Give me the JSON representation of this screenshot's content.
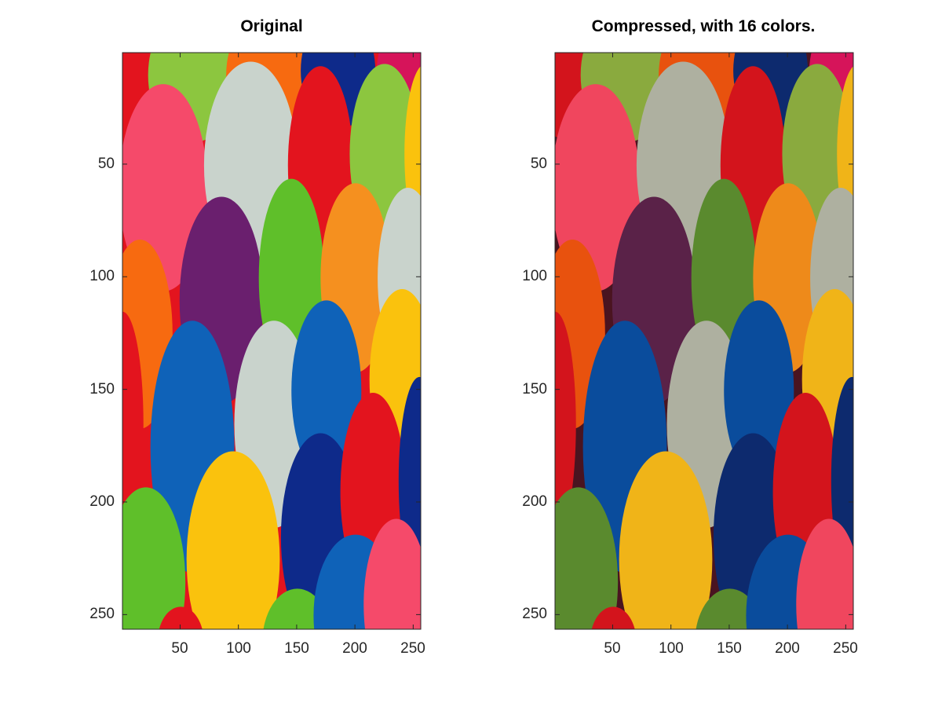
{
  "panels": [
    {
      "title": "Original",
      "image": "photo of colorful yarn pom-poms",
      "x_ticks": [
        "50",
        "100",
        "150",
        "200",
        "250"
      ],
      "y_ticks": [
        "50",
        "100",
        "150",
        "200",
        "250"
      ]
    },
    {
      "title": "Compressed, with 16 colors.",
      "image": "same photo quantized to 16 colors",
      "x_ticks": [
        "50",
        "100",
        "150",
        "200",
        "250"
      ],
      "y_ticks": [
        "50",
        "100",
        "150",
        "200",
        "250"
      ]
    }
  ],
  "colors": {
    "red": "#e3141e",
    "green": "#5fbf2a",
    "lime": "#8cc63f",
    "orange": "#f76a10",
    "navy": "#0e2a8a",
    "magenta": "#d6145a",
    "pink": "#f54a6a",
    "gray": "#c9d3cc",
    "purple": "#6a1f6e",
    "lightorange": "#f5901f",
    "yellow": "#fac20d",
    "blue": "#0f62b8",
    "q_red": "#d3141c",
    "q_green": "#5a8a2e",
    "q_lime": "#8aaa3e",
    "q_orange": "#e8520e",
    "q_navy": "#0d2a6e",
    "q_pink": "#f0465e",
    "q_gray": "#aeb0a0",
    "q_purple": "#5a2248",
    "q_lightorange": "#ee8a1a",
    "q_yellow": "#f0b418",
    "q_blue": "#0a4c9c",
    "q_dark": "#4a1420"
  }
}
